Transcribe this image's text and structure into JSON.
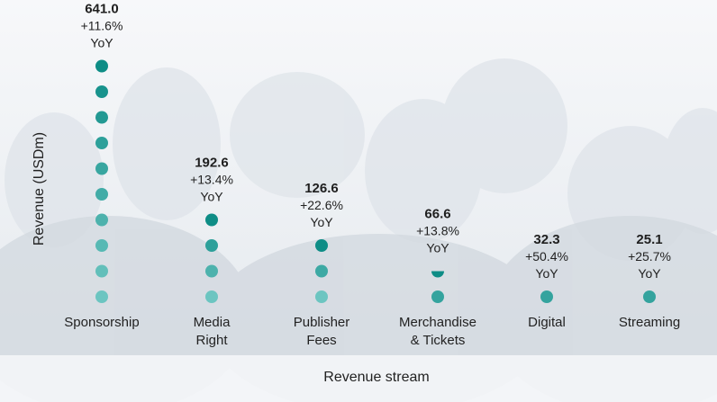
{
  "chart_data": {
    "type": "dot-column",
    "xlabel": "Revenue stream",
    "ylabel": "Revenue (USDm)",
    "unit": "USDm",
    "categories": [
      [
        "Sponsorship"
      ],
      [
        "Media",
        "Right"
      ],
      [
        "Publisher",
        "Fees"
      ],
      [
        "Merchandise",
        "& Tickets"
      ],
      [
        "Digital"
      ],
      [
        "Streaming"
      ]
    ],
    "values": [
      641.0,
      192.6,
      126.6,
      66.6,
      32.3,
      25.1
    ],
    "value_labels": [
      "641.0",
      "192.6",
      "126.6",
      "66.6",
      "32.3",
      "25.1"
    ],
    "yoy_labels": [
      "+11.6%",
      "+13.4%",
      "+22.6%",
      "+13.8%",
      "+50.4%",
      "+25.7%"
    ],
    "yoy_suffix": "YoY",
    "dot_counts": [
      10,
      4,
      3,
      1.5,
      1,
      1
    ],
    "colors": {
      "dot_top": "#0e8d86",
      "dot_bottom": "#6cc5c1",
      "text": "#222222"
    },
    "grid": false,
    "legend": "none"
  }
}
